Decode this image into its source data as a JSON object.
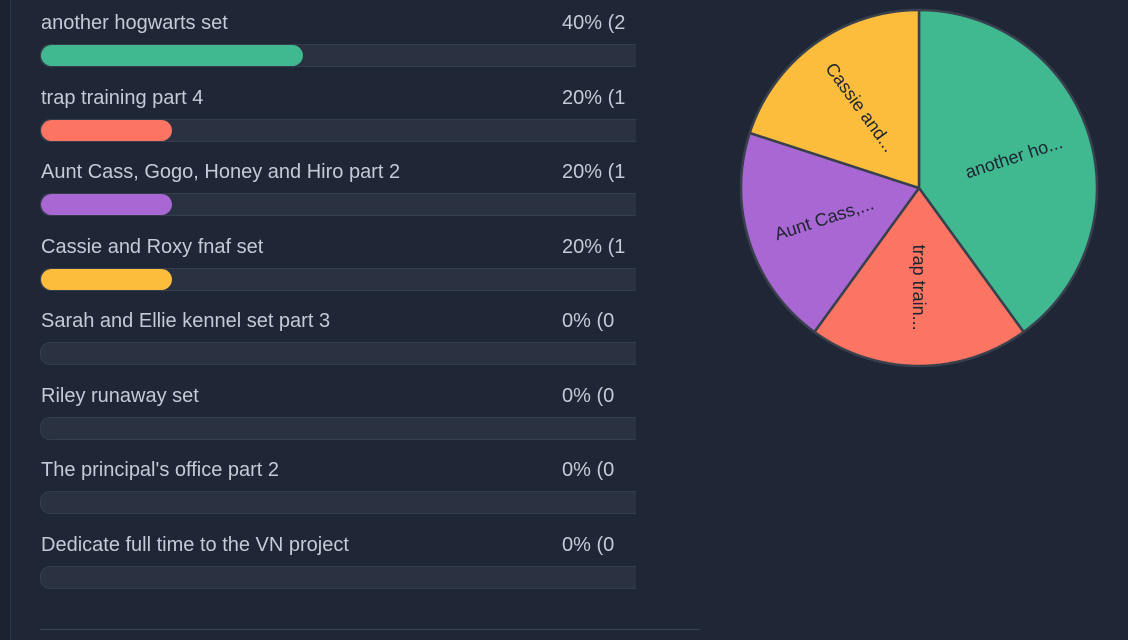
{
  "poll": {
    "options": [
      {
        "label": "another hogwarts set",
        "pct_text": "40% (2",
        "value": 40,
        "color": "#40b890"
      },
      {
        "label": "trap training part 4",
        "pct_text": "20% (1",
        "value": 20,
        "color": "#fc7462"
      },
      {
        "label": "Aunt Cass, Gogo, Honey and Hiro part 2",
        "pct_text": "20% (1",
        "value": 20,
        "color": "#a967d3"
      },
      {
        "label": "Cassie and Roxy fnaf set",
        "pct_text": "20% (1",
        "value": 20,
        "color": "#fcbc3c"
      },
      {
        "label": "Sarah and Ellie kennel set part 3",
        "pct_text": "0% (0",
        "value": 0,
        "color": "#40b890"
      },
      {
        "label": "Riley runaway set",
        "pct_text": "0% (0",
        "value": 0,
        "color": "#40b890"
      },
      {
        "label": "The principal's office part 2",
        "pct_text": "0% (0",
        "value": 0,
        "color": "#40b890"
      },
      {
        "label": "Dedicate full time to the VN project",
        "pct_text": "0% (0",
        "value": 0,
        "color": "#40b890"
      }
    ]
  },
  "chart_data": {
    "type": "pie",
    "categories": [
      "another hogwarts set",
      "trap training part 4",
      "Aunt Cass, Gogo, Honey and Hiro part 2",
      "Cassie and Roxy fnaf set"
    ],
    "values": [
      40,
      20,
      20,
      20
    ],
    "slice_labels": [
      "another ho...",
      "trap train...",
      "Aunt Cass,...",
      "Cassie and..."
    ],
    "colors": [
      "#40b890",
      "#fc7462",
      "#a967d3",
      "#fcbc3c"
    ],
    "start": "top",
    "direction": "clockwise"
  }
}
